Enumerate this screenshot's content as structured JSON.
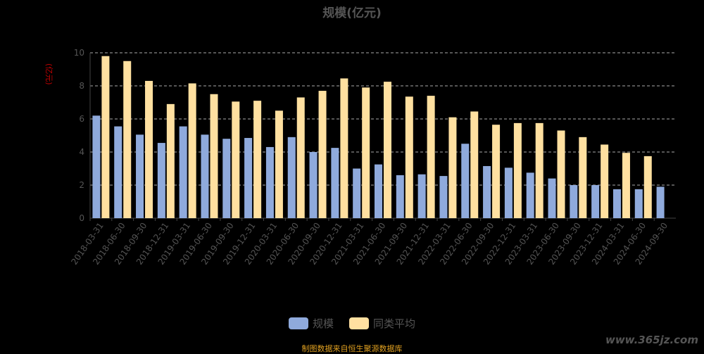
{
  "title": "规模(亿元)",
  "unit_label": "(亿元)",
  "source_note": "制图数据来自恒生聚源数据库",
  "watermark": "www.365jz.com",
  "colors": {
    "series_1": "#8faadc",
    "series_2": "#ffe0a0",
    "grid": "#aaaaaa",
    "axis_text": "#555555"
  },
  "chart_data": {
    "type": "bar",
    "title": "规模(亿元)",
    "ylabel": "(亿元)",
    "ylim": [
      0,
      10
    ],
    "yticks": [
      0,
      2,
      4,
      6,
      8,
      10
    ],
    "grid": true,
    "legend_position": "bottom",
    "categories": [
      "2018-03-31",
      "2018-06-30",
      "2018-09-30",
      "2018-12-31",
      "2019-03-31",
      "2019-06-30",
      "2019-09-30",
      "2019-12-31",
      "2020-03-31",
      "2020-06-30",
      "2020-09-30",
      "2020-12-31",
      "2021-03-31",
      "2021-06-30",
      "2021-09-30",
      "2021-12-31",
      "2022-03-31",
      "2022-06-30",
      "2022-09-30",
      "2022-12-31",
      "2023-03-31",
      "2023-06-30",
      "2023-09-30",
      "2023-12-31",
      "2024-03-31",
      "2024-06-30",
      "2024-09-30"
    ],
    "series": [
      {
        "name": "规模",
        "color": "#8faadc",
        "values": [
          6.2,
          5.55,
          5.05,
          4.55,
          5.55,
          5.05,
          4.8,
          4.85,
          4.3,
          4.9,
          4.0,
          4.25,
          3.0,
          3.25,
          2.6,
          2.65,
          2.55,
          4.5,
          3.15,
          3.05,
          2.75,
          2.4,
          2.0,
          2.0,
          1.75,
          1.75,
          1.9
        ]
      },
      {
        "name": "同类平均",
        "color": "#ffe0a0",
        "values": [
          9.8,
          9.5,
          8.3,
          6.9,
          8.15,
          7.5,
          7.05,
          7.1,
          6.5,
          7.3,
          7.7,
          8.45,
          7.9,
          8.25,
          7.35,
          7.4,
          6.1,
          6.45,
          5.65,
          5.75,
          5.75,
          5.3,
          4.9,
          4.45,
          3.95,
          3.75,
          null
        ]
      }
    ]
  }
}
